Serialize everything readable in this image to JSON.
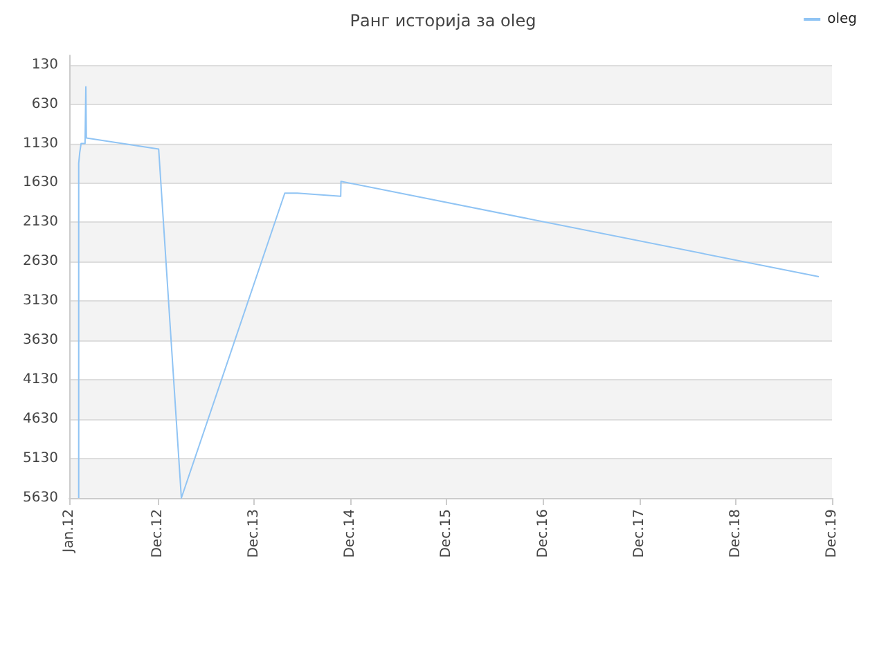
{
  "chart_data": {
    "type": "line",
    "title": "Ранг историја за oleg",
    "x": [
      "2012-02-06",
      "2012-02-06",
      "2012-02-10",
      "2012-02-15",
      "2012-03-01",
      "2012-03-04",
      "2012-03-05",
      "2012-03-06",
      "2012-12-05",
      "2013-03-01",
      "2014-03-28",
      "2014-05-15",
      "2014-10-26",
      "2014-10-27",
      "2019-10-12"
    ],
    "series": [
      {
        "name": "oleg",
        "color": "#90c4f4",
        "values": [
          5630,
          1380,
          1240,
          1130,
          1130,
          410,
          410,
          1060,
          1200,
          5630,
          1760,
          1760,
          1800,
          1610,
          2820
        ]
      }
    ],
    "xlim": [
      "2012-01-01",
      "2019-12-01"
    ],
    "xticks": [
      {
        "value": "2012-01-01",
        "label": "Jan.12"
      },
      {
        "value": "2012-12-01",
        "label": "Dec.12"
      },
      {
        "value": "2013-12-01",
        "label": "Dec.13"
      },
      {
        "value": "2014-12-01",
        "label": "Dec.14"
      },
      {
        "value": "2015-12-01",
        "label": "Dec.15"
      },
      {
        "value": "2016-12-01",
        "label": "Dec.16"
      },
      {
        "value": "2017-12-01",
        "label": "Dec.17"
      },
      {
        "value": "2018-12-01",
        "label": "Dec.18"
      },
      {
        "value": "2019-12-01",
        "label": "Dec.19"
      }
    ],
    "ylim": [
      5630,
      10
    ],
    "yticks": [
      130,
      630,
      1130,
      1630,
      2130,
      2630,
      3130,
      3630,
      4130,
      4630,
      5130,
      5630
    ],
    "grid": "y",
    "legend": "top right",
    "marker": "none",
    "line_style": "solid"
  }
}
